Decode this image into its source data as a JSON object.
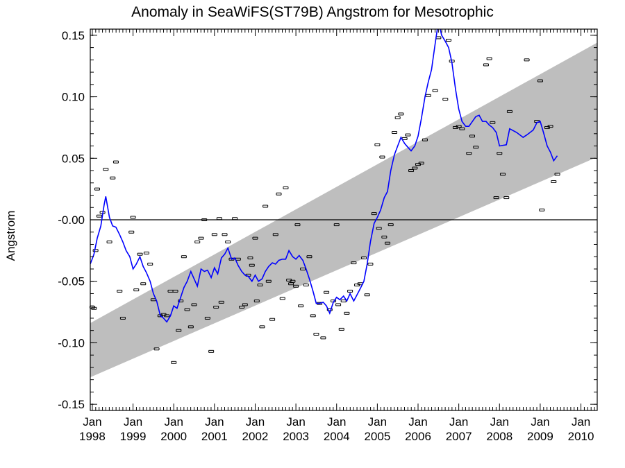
{
  "chart_data": {
    "type": "line",
    "title": "Anomaly in SeaWiFS(ST79B) Angstrom for Mesotrophic",
    "xlabel": "",
    "ylabel": "Angstrom",
    "xlim": [
      1997.95,
      2010.4
    ],
    "ylim": [
      -0.155,
      0.155
    ],
    "grid": false,
    "y_ticks": [
      -0.15,
      -0.1,
      -0.05,
      0.0,
      0.05,
      0.1,
      0.15
    ],
    "y_tick_labels": [
      "-0.15",
      "-0.10",
      "-0.05",
      "-0.00",
      "0.05",
      "0.10",
      "0.15"
    ],
    "x_ticks": [
      {
        "x": 1998,
        "month": "Jan",
        "year": "1998"
      },
      {
        "x": 1999,
        "month": "Jan",
        "year": "1999"
      },
      {
        "x": 2000,
        "month": "Jan",
        "year": "2000"
      },
      {
        "x": 2001,
        "month": "Jan",
        "year": "2001"
      },
      {
        "x": 2002,
        "month": "Jan",
        "year": "2002"
      },
      {
        "x": 2003,
        "month": "Jan",
        "year": "2003"
      },
      {
        "x": 2004,
        "month": "Jan",
        "year": "2004"
      },
      {
        "x": 2005,
        "month": "Jan",
        "year": "2005"
      },
      {
        "x": 2006,
        "month": "Jan",
        "year": "2006"
      },
      {
        "x": 2007,
        "month": "Jan",
        "year": "2007"
      },
      {
        "x": 2008,
        "month": "Jan",
        "year": "2008"
      },
      {
        "x": 2009,
        "month": "Jan",
        "year": "2009"
      },
      {
        "x": 2010,
        "month": "Jan",
        "year": "2010"
      }
    ],
    "zero_line": 0.0,
    "trend_band": {
      "x": [
        1997.95,
        2010.4
      ],
      "lower": [
        -0.128,
        0.051
      ],
      "upper": [
        -0.084,
        0.144
      ],
      "color": "#bebebe"
    },
    "series": [
      {
        "type": "scatter",
        "marker": "errorbar",
        "color": "#000000",
        "points": [
          [
            1998.0,
            -0.071
          ],
          [
            1998.04,
            -0.072
          ],
          [
            1998.08,
            -0.025
          ],
          [
            1998.12,
            0.025
          ],
          [
            1998.17,
            0.003
          ],
          [
            1998.25,
            0.006
          ],
          [
            1998.33,
            0.041
          ],
          [
            1998.42,
            -0.018
          ],
          [
            1998.5,
            0.034
          ],
          [
            1998.58,
            0.047
          ],
          [
            1998.67,
            -0.058
          ],
          [
            1998.75,
            -0.08
          ],
          [
            1998.96,
            -0.01
          ],
          [
            1999.0,
            0.002
          ],
          [
            1999.08,
            -0.057
          ],
          [
            1999.17,
            -0.028
          ],
          [
            1999.25,
            -0.052
          ],
          [
            1999.33,
            -0.027
          ],
          [
            1999.42,
            -0.036
          ],
          [
            1999.5,
            -0.065
          ],
          [
            1999.58,
            -0.105
          ],
          [
            1999.67,
            -0.078
          ],
          [
            1999.75,
            -0.077
          ],
          [
            1999.83,
            -0.078
          ],
          [
            1999.92,
            -0.058
          ],
          [
            2000.0,
            -0.116
          ],
          [
            2000.04,
            -0.058
          ],
          [
            2000.12,
            -0.09
          ],
          [
            2000.17,
            -0.066
          ],
          [
            2000.25,
            -0.03
          ],
          [
            2000.33,
            -0.073
          ],
          [
            2000.42,
            -0.087
          ],
          [
            2000.5,
            -0.069
          ],
          [
            2000.58,
            -0.018
          ],
          [
            2000.67,
            -0.015
          ],
          [
            2000.75,
            0.0
          ],
          [
            2000.83,
            -0.08
          ],
          [
            2000.92,
            -0.107
          ],
          [
            2001.0,
            -0.012
          ],
          [
            2001.04,
            -0.071
          ],
          [
            2001.12,
            0.001
          ],
          [
            2001.17,
            -0.067
          ],
          [
            2001.25,
            -0.012
          ],
          [
            2001.33,
            -0.018
          ],
          [
            2001.42,
            -0.032
          ],
          [
            2001.5,
            0.001
          ],
          [
            2001.58,
            -0.032
          ],
          [
            2001.67,
            -0.071
          ],
          [
            2001.75,
            -0.069
          ],
          [
            2001.83,
            -0.045
          ],
          [
            2001.88,
            -0.031
          ],
          [
            2001.92,
            -0.037
          ],
          [
            2002.0,
            -0.015
          ],
          [
            2002.04,
            -0.066
          ],
          [
            2002.12,
            -0.053
          ],
          [
            2002.17,
            -0.087
          ],
          [
            2002.25,
            0.011
          ],
          [
            2002.33,
            -0.05
          ],
          [
            2002.42,
            -0.081
          ],
          [
            2002.5,
            -0.012
          ],
          [
            2002.58,
            0.021
          ],
          [
            2002.67,
            -0.064
          ],
          [
            2002.75,
            0.026
          ],
          [
            2002.83,
            -0.049
          ],
          [
            2002.88,
            -0.052
          ],
          [
            2002.92,
            -0.05
          ],
          [
            2003.0,
            -0.054
          ],
          [
            2003.04,
            -0.004
          ],
          [
            2003.12,
            -0.07
          ],
          [
            2003.17,
            -0.04
          ],
          [
            2003.25,
            -0.053
          ],
          [
            2003.33,
            -0.03
          ],
          [
            2003.42,
            -0.078
          ],
          [
            2003.5,
            -0.093
          ],
          [
            2003.58,
            -0.068
          ],
          [
            2003.67,
            -0.096
          ],
          [
            2003.75,
            -0.059
          ],
          [
            2003.83,
            -0.073
          ],
          [
            2003.92,
            -0.066
          ],
          [
            2004.0,
            -0.004
          ],
          [
            2004.04,
            -0.069
          ],
          [
            2004.12,
            -0.089
          ],
          [
            2004.17,
            -0.066
          ],
          [
            2004.25,
            -0.076
          ],
          [
            2004.33,
            -0.058
          ],
          [
            2004.42,
            -0.035
          ],
          [
            2004.5,
            -0.053
          ],
          [
            2004.58,
            -0.052
          ],
          [
            2004.67,
            -0.031
          ],
          [
            2004.75,
            -0.061
          ],
          [
            2004.83,
            -0.036
          ],
          [
            2004.92,
            0.005
          ],
          [
            2005.0,
            0.061
          ],
          [
            2005.04,
            -0.007
          ],
          [
            2005.12,
            0.051
          ],
          [
            2005.17,
            -0.014
          ],
          [
            2005.25,
            -0.019
          ],
          [
            2005.33,
            -0.004
          ],
          [
            2005.42,
            0.071
          ],
          [
            2005.5,
            0.083
          ],
          [
            2005.58,
            0.086
          ],
          [
            2005.67,
            0.066
          ],
          [
            2005.75,
            0.069
          ],
          [
            2005.83,
            0.04
          ],
          [
            2005.92,
            0.042
          ],
          [
            2006.0,
            0.045
          ],
          [
            2006.08,
            0.046
          ],
          [
            2006.17,
            0.065
          ],
          [
            2006.25,
            0.101
          ],
          [
            2006.42,
            0.105
          ],
          [
            2006.5,
            0.148
          ],
          [
            2006.67,
            0.098
          ],
          [
            2006.75,
            0.146
          ],
          [
            2006.83,
            0.129
          ],
          [
            2006.92,
            0.075
          ],
          [
            2007.0,
            0.076
          ],
          [
            2007.08,
            0.074
          ],
          [
            2007.25,
            0.054
          ],
          [
            2007.33,
            0.068
          ],
          [
            2007.42,
            0.059
          ],
          [
            2007.67,
            0.126
          ],
          [
            2007.75,
            0.131
          ],
          [
            2007.83,
            0.079
          ],
          [
            2007.92,
            0.018
          ],
          [
            2008.0,
            0.054
          ],
          [
            2008.08,
            0.037
          ],
          [
            2008.17,
            0.018
          ],
          [
            2008.25,
            0.088
          ],
          [
            2008.67,
            0.13
          ],
          [
            2008.92,
            0.08
          ],
          [
            2009.0,
            0.113
          ],
          [
            2009.04,
            0.008
          ],
          [
            2009.17,
            0.075
          ],
          [
            2009.25,
            0.076
          ],
          [
            2009.33,
            0.031
          ],
          [
            2009.42,
            0.037
          ]
        ]
      },
      {
        "type": "line",
        "color": "#0000ff",
        "points": [
          [
            1997.95,
            -0.036
          ],
          [
            1998.04,
            -0.028
          ],
          [
            1998.12,
            -0.015
          ],
          [
            1998.21,
            -0.005
          ],
          [
            1998.29,
            0.012
          ],
          [
            1998.33,
            0.019
          ],
          [
            1998.42,
            0.002
          ],
          [
            1998.5,
            -0.005
          ],
          [
            1998.58,
            -0.006
          ],
          [
            1998.67,
            -0.012
          ],
          [
            1998.75,
            -0.018
          ],
          [
            1998.83,
            -0.025
          ],
          [
            1998.92,
            -0.03
          ],
          [
            1999.0,
            -0.04
          ],
          [
            1999.08,
            -0.036
          ],
          [
            1999.17,
            -0.03
          ],
          [
            1999.25,
            -0.038
          ],
          [
            1999.33,
            -0.043
          ],
          [
            1999.42,
            -0.05
          ],
          [
            1999.5,
            -0.06
          ],
          [
            1999.58,
            -0.066
          ],
          [
            1999.67,
            -0.078
          ],
          [
            1999.75,
            -0.08
          ],
          [
            1999.83,
            -0.083
          ],
          [
            1999.92,
            -0.078
          ],
          [
            2000.0,
            -0.07
          ],
          [
            2000.08,
            -0.072
          ],
          [
            2000.17,
            -0.063
          ],
          [
            2000.25,
            -0.055
          ],
          [
            2000.33,
            -0.05
          ],
          [
            2000.42,
            -0.042
          ],
          [
            2000.5,
            -0.048
          ],
          [
            2000.58,
            -0.054
          ],
          [
            2000.67,
            -0.04
          ],
          [
            2000.75,
            -0.042
          ],
          [
            2000.83,
            -0.041
          ],
          [
            2000.92,
            -0.047
          ],
          [
            2001.0,
            -0.039
          ],
          [
            2001.08,
            -0.044
          ],
          [
            2001.17,
            -0.031
          ],
          [
            2001.25,
            -0.028
          ],
          [
            2001.33,
            -0.023
          ],
          [
            2001.42,
            -0.032
          ],
          [
            2001.5,
            -0.031
          ],
          [
            2001.58,
            -0.037
          ],
          [
            2001.67,
            -0.042
          ],
          [
            2001.75,
            -0.045
          ],
          [
            2001.83,
            -0.046
          ],
          [
            2001.92,
            -0.05
          ],
          [
            2002.0,
            -0.045
          ],
          [
            2002.08,
            -0.05
          ],
          [
            2002.17,
            -0.048
          ],
          [
            2002.25,
            -0.042
          ],
          [
            2002.33,
            -0.038
          ],
          [
            2002.42,
            -0.035
          ],
          [
            2002.5,
            -0.036
          ],
          [
            2002.58,
            -0.033
          ],
          [
            2002.67,
            -0.032
          ],
          [
            2002.75,
            -0.032
          ],
          [
            2002.83,
            -0.025
          ],
          [
            2002.92,
            -0.03
          ],
          [
            2003.0,
            -0.032
          ],
          [
            2003.08,
            -0.029
          ],
          [
            2003.17,
            -0.033
          ],
          [
            2003.25,
            -0.04
          ],
          [
            2003.33,
            -0.048
          ],
          [
            2003.42,
            -0.058
          ],
          [
            2003.5,
            -0.068
          ],
          [
            2003.58,
            -0.068
          ],
          [
            2003.67,
            -0.067
          ],
          [
            2003.75,
            -0.07
          ],
          [
            2003.83,
            -0.076
          ],
          [
            2003.92,
            -0.067
          ],
          [
            2004.0,
            -0.063
          ],
          [
            2004.08,
            -0.065
          ],
          [
            2004.17,
            -0.062
          ],
          [
            2004.25,
            -0.066
          ],
          [
            2004.33,
            -0.06
          ],
          [
            2004.42,
            -0.066
          ],
          [
            2004.5,
            -0.061
          ],
          [
            2004.58,
            -0.056
          ],
          [
            2004.67,
            -0.05
          ],
          [
            2004.75,
            -0.036
          ],
          [
            2004.83,
            -0.018
          ],
          [
            2004.92,
            -0.003
          ],
          [
            2005.0,
            0.002
          ],
          [
            2005.08,
            0.008
          ],
          [
            2005.17,
            0.018
          ],
          [
            2005.25,
            0.023
          ],
          [
            2005.33,
            0.04
          ],
          [
            2005.42,
            0.053
          ],
          [
            2005.5,
            0.06
          ],
          [
            2005.58,
            0.067
          ],
          [
            2005.67,
            0.062
          ],
          [
            2005.75,
            0.059
          ],
          [
            2005.83,
            0.056
          ],
          [
            2005.92,
            0.06
          ],
          [
            2006.0,
            0.068
          ],
          [
            2006.08,
            0.082
          ],
          [
            2006.17,
            0.1
          ],
          [
            2006.25,
            0.112
          ],
          [
            2006.33,
            0.122
          ],
          [
            2006.42,
            0.143
          ],
          [
            2006.5,
            0.161
          ],
          [
            2006.58,
            0.15
          ],
          [
            2006.67,
            0.145
          ],
          [
            2006.75,
            0.14
          ],
          [
            2006.83,
            0.128
          ],
          [
            2006.92,
            0.106
          ],
          [
            2007.0,
            0.09
          ],
          [
            2007.08,
            0.08
          ],
          [
            2007.17,
            0.076
          ],
          [
            2007.25,
            0.076
          ],
          [
            2007.42,
            0.084
          ],
          [
            2007.5,
            0.085
          ],
          [
            2007.58,
            0.08
          ],
          [
            2007.67,
            0.08
          ],
          [
            2007.75,
            0.077
          ],
          [
            2007.83,
            0.075
          ],
          [
            2007.92,
            0.071
          ],
          [
            2008.0,
            0.06
          ],
          [
            2008.17,
            0.061
          ],
          [
            2008.25,
            0.074
          ],
          [
            2008.42,
            0.071
          ],
          [
            2008.58,
            0.067
          ],
          [
            2008.67,
            0.069
          ],
          [
            2008.83,
            0.073
          ],
          [
            2008.92,
            0.079
          ],
          [
            2009.0,
            0.08
          ],
          [
            2009.08,
            0.071
          ],
          [
            2009.17,
            0.06
          ],
          [
            2009.25,
            0.055
          ],
          [
            2009.33,
            0.048
          ],
          [
            2009.42,
            0.052
          ]
        ]
      }
    ]
  }
}
